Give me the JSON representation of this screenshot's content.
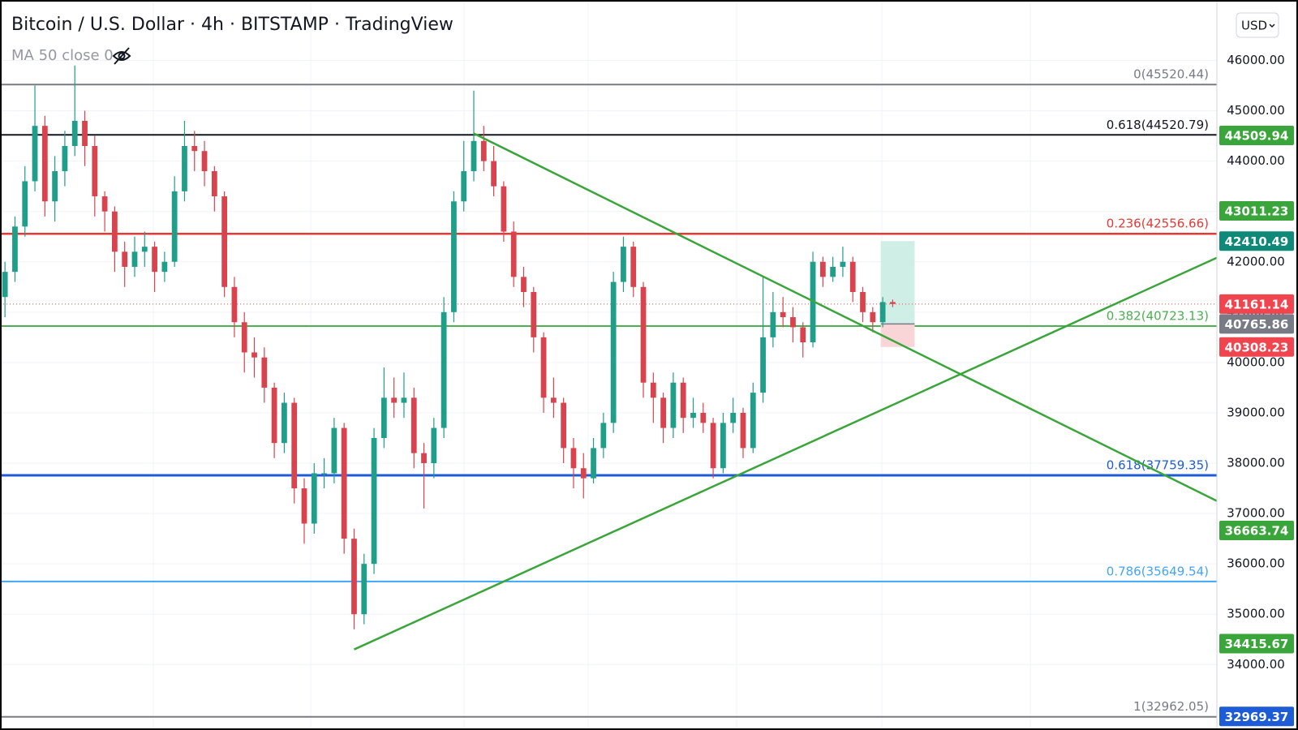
{
  "header": {
    "title": "Bitcoin / U.S. Dollar · 4h · BITSTAMP · TradingView",
    "indicator": "MA 50 close 0",
    "currency": "USD"
  },
  "chart_data": {
    "type": "candlestick",
    "up_color": "#1f9e89",
    "down_color": "#d9434e",
    "xlim": [
      -0.5,
      121.5
    ],
    "ylim": [
      32700,
      47200
    ],
    "yticks": [
      {
        "value": 34000,
        "label": "34000.00"
      },
      {
        "value": 35000,
        "label": "35000.00"
      },
      {
        "value": 36000,
        "label": "36000.00"
      },
      {
        "value": 37000,
        "label": "37000.00"
      },
      {
        "value": 38000,
        "label": "38000.00"
      },
      {
        "value": 39000,
        "label": "39000.00"
      },
      {
        "value": 40000,
        "label": "40000.00"
      },
      {
        "value": 41000,
        "label": "41000.00"
      },
      {
        "value": 42000,
        "label": "42000.00"
      },
      {
        "value": 43000,
        "label": "43000.00"
      },
      {
        "value": 44000,
        "label": "44000.00"
      },
      {
        "value": 45000,
        "label": "45000.00"
      },
      {
        "value": 46000,
        "label": "46000.00"
      }
    ],
    "candles": [
      [
        41300,
        42000,
        40900,
        41800
      ],
      [
        41800,
        42900,
        41600,
        42700
      ],
      [
        42700,
        43900,
        42500,
        43600
      ],
      [
        43600,
        45500,
        43400,
        44700
      ],
      [
        44700,
        44900,
        42900,
        43200
      ],
      [
        43200,
        44100,
        42800,
        43800
      ],
      [
        43800,
        44600,
        43500,
        44300
      ],
      [
        44300,
        45900,
        44100,
        44800
      ],
      [
        44800,
        45000,
        43900,
        44300
      ],
      [
        44300,
        44500,
        42900,
        43300
      ],
      [
        43300,
        43400,
        42600,
        43000
      ],
      [
        43000,
        43100,
        41800,
        42200
      ],
      [
        42200,
        42400,
        41500,
        41900
      ],
      [
        41900,
        42500,
        41700,
        42200
      ],
      [
        42200,
        42600,
        41900,
        42300
      ],
      [
        42300,
        42400,
        41400,
        41800
      ],
      [
        41800,
        42200,
        41600,
        42000
      ],
      [
        42000,
        43700,
        41900,
        43400
      ],
      [
        43400,
        44800,
        43200,
        44300
      ],
      [
        44300,
        44600,
        43800,
        44200
      ],
      [
        44200,
        44400,
        43500,
        43800
      ],
      [
        43800,
        43900,
        43000,
        43300
      ],
      [
        43300,
        43400,
        41300,
        41500
      ],
      [
        41500,
        41700,
        40500,
        40800
      ],
      [
        40800,
        41000,
        39800,
        40200
      ],
      [
        40200,
        40500,
        39700,
        40100
      ],
      [
        40100,
        40300,
        39200,
        39500
      ],
      [
        39500,
        39600,
        38100,
        38400
      ],
      [
        38400,
        39400,
        38200,
        39200
      ],
      [
        39200,
        39300,
        37200,
        37500
      ],
      [
        37500,
        37700,
        36400,
        36800
      ],
      [
        36800,
        38000,
        36600,
        37800
      ],
      [
        37800,
        38100,
        37500,
        37800
      ],
      [
        37800,
        38900,
        37600,
        38700
      ],
      [
        38700,
        38800,
        36200,
        36500
      ],
      [
        36500,
        36700,
        34700,
        35000
      ],
      [
        35000,
        36200,
        34800,
        36000
      ],
      [
        36000,
        38700,
        35800,
        38500
      ],
      [
        38500,
        39900,
        38300,
        39300
      ],
      [
        39300,
        39700,
        38900,
        39200
      ],
      [
        39200,
        39800,
        38900,
        39300
      ],
      [
        39300,
        39500,
        37900,
        38200
      ],
      [
        38200,
        38400,
        37100,
        38000
      ],
      [
        38000,
        38900,
        37700,
        38700
      ],
      [
        38700,
        41300,
        38500,
        41000
      ],
      [
        41000,
        43400,
        40800,
        43200
      ],
      [
        43200,
        44400,
        43000,
        43800
      ],
      [
        43800,
        45400,
        43600,
        44400
      ],
      [
        44400,
        44700,
        43800,
        44000
      ],
      [
        44000,
        44300,
        43300,
        43500
      ],
      [
        43500,
        43600,
        42400,
        42600
      ],
      [
        42600,
        42800,
        41500,
        41700
      ],
      [
        41700,
        41900,
        41100,
        41400
      ],
      [
        41400,
        41500,
        40200,
        40500
      ],
      [
        40500,
        40600,
        39000,
        39300
      ],
      [
        39300,
        39700,
        38900,
        39200
      ],
      [
        39200,
        39300,
        38000,
        38300
      ],
      [
        38300,
        38500,
        37500,
        37900
      ],
      [
        37900,
        38200,
        37300,
        37700
      ],
      [
        37700,
        38500,
        37600,
        38300
      ],
      [
        38300,
        39000,
        38100,
        38800
      ],
      [
        38800,
        41800,
        38600,
        41600
      ],
      [
        41600,
        42500,
        41400,
        42300
      ],
      [
        42300,
        42400,
        41300,
        41500
      ],
      [
        41500,
        41600,
        39300,
        39600
      ],
      [
        39600,
        39800,
        38800,
        39300
      ],
      [
        39300,
        39400,
        38400,
        38700
      ],
      [
        38700,
        39800,
        38500,
        39600
      ],
      [
        39600,
        39700,
        38600,
        38900
      ],
      [
        38900,
        39300,
        38700,
        39000
      ],
      [
        39000,
        39200,
        38600,
        38800
      ],
      [
        38800,
        38900,
        37700,
        37900
      ],
      [
        37900,
        39000,
        37800,
        38800
      ],
      [
        38800,
        39300,
        38600,
        39000
      ],
      [
        39000,
        39100,
        38100,
        38300
      ],
      [
        38300,
        39600,
        38200,
        39400
      ],
      [
        39400,
        41700,
        39200,
        40500
      ],
      [
        40500,
        41400,
        40300,
        41000
      ],
      [
        41000,
        41300,
        40700,
        40900
      ],
      [
        40900,
        41100,
        40400,
        40700
      ],
      [
        40700,
        40800,
        40100,
        40400
      ],
      [
        40400,
        42200,
        40300,
        42000
      ],
      [
        42000,
        42100,
        41500,
        41700
      ],
      [
        41700,
        42100,
        41600,
        41900
      ],
      [
        41900,
        42300,
        41700,
        42000
      ],
      [
        42000,
        42100,
        41200,
        41400
      ],
      [
        41400,
        41500,
        40800,
        41000
      ],
      [
        41000,
        41100,
        40600,
        40800
      ],
      [
        40800,
        41300,
        40700,
        41200
      ],
      [
        41200,
        41250,
        41100,
        41161.14
      ]
    ],
    "fib_levels": [
      {
        "label": "0(45520.44)",
        "value": 45520.44,
        "color": "#787b86"
      },
      {
        "label": "0.618(44520.79)",
        "value": 44520.79,
        "color": "#131722"
      },
      {
        "label": "0.236(42556.66)",
        "value": 42556.66,
        "color": "#e53935"
      },
      {
        "label": "0.382(40723.13)",
        "value": 40723.13,
        "color": "#4caf50"
      },
      {
        "label": "0.618(37759.35)",
        "value": 37759.35,
        "color": "#1e5bd6"
      },
      {
        "label": "0.786(35649.54)",
        "value": 35649.54,
        "color": "#42a5f5"
      },
      {
        "label": "1(32962.05)",
        "value": 32962.05,
        "color": "#787b86"
      }
    ],
    "trendlines": [
      {
        "color": "#3aa53a",
        "points": [
          [
            47,
            44550
          ],
          [
            121.5,
            37250
          ]
        ]
      },
      {
        "color": "#3aa53a",
        "points": [
          [
            35,
            34300
          ],
          [
            121.5,
            42080
          ]
        ]
      }
    ],
    "price_labels": [
      {
        "value": 44509.94,
        "color": "#3aa53a"
      },
      {
        "value": 43011.23,
        "color": "#3aa53a"
      },
      {
        "value": 42410.49,
        "color": "#0f8a78"
      },
      {
        "value": 41161.14,
        "color": "#f0454f"
      },
      {
        "value": 40765.86,
        "color": "#787b86"
      },
      {
        "value": 40308.23,
        "color": "#f0454f"
      },
      {
        "value": 36663.74,
        "color": "#3aa53a"
      },
      {
        "value": 34415.67,
        "color": "#3aa53a"
      },
      {
        "value": 32969.37,
        "color": "#1e5bd6"
      }
    ]
  }
}
